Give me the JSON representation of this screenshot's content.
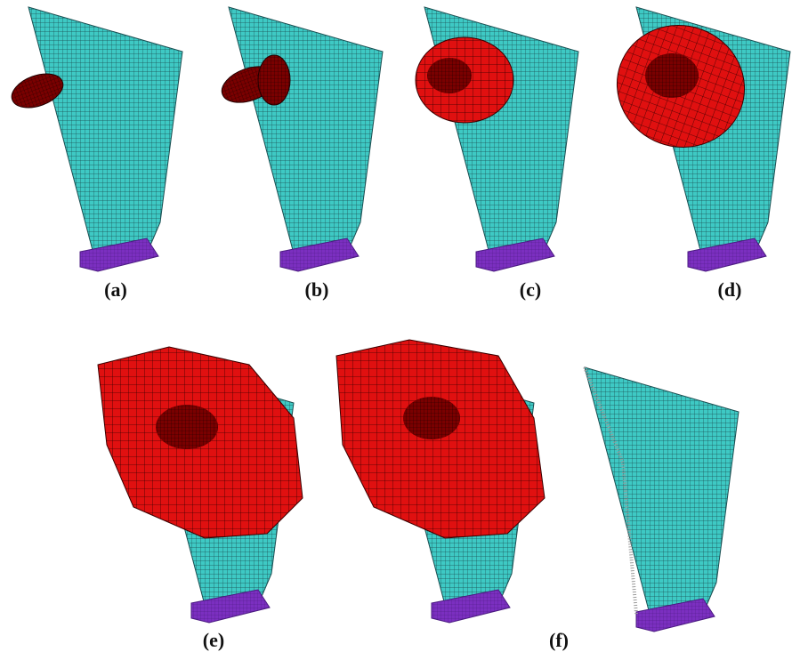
{
  "panels": {
    "labels": [
      "(a)",
      "(b)",
      "(c)",
      "(d)",
      "(e)",
      "(f)"
    ]
  }
}
